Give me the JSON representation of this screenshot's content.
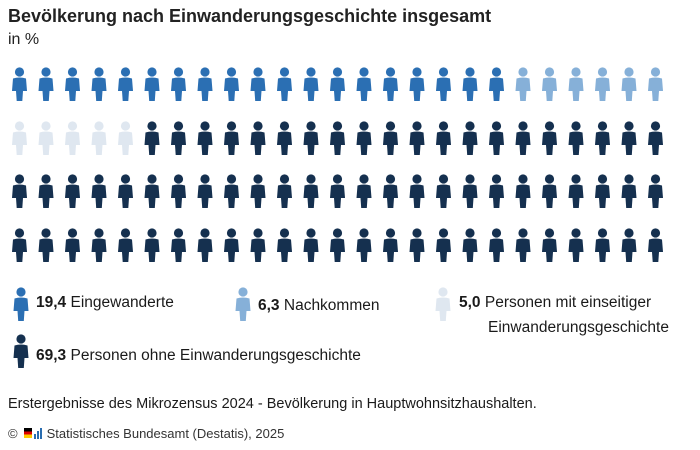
{
  "title": "Bevölkerung nach Einwanderungsgeschichte insgesamt",
  "subtitle": "in %",
  "chart_data": {
    "type": "pictogram",
    "total_icons": 100,
    "grid": {
      "rows": 4,
      "columns": 25
    },
    "series": [
      {
        "name": "Eingewanderte",
        "value": 19.4,
        "value_label": "19,4",
        "icons": 19,
        "color": "#2b6fb3"
      },
      {
        "name": "Nachkommen",
        "value": 6.3,
        "value_label": "6,3",
        "icons": 6,
        "color": "#86b0d8"
      },
      {
        "name": "Personen mit einseitiger Einwanderungsgeschichte",
        "value": 5.0,
        "value_label": "5,0",
        "icons": 5,
        "color": "#dfe7f0"
      },
      {
        "name": "Personen ohne Einwanderungsgeschichte",
        "value": 69.3,
        "value_label": "69,3",
        "icons": 70,
        "color": "#15304f"
      }
    ]
  },
  "legend": {
    "item1_value": "19,4",
    "item1_label": "Eingewanderte",
    "item2_value": "6,3",
    "item2_label": "Nachkommen",
    "item3_value": "5,0",
    "item3_label_line1": "Personen mit einseitiger",
    "item3_label_line2": "Einwanderungsgeschichte",
    "item4_value": "69,3",
    "item4_label": "Personen ohne Einwanderungsgeschichte"
  },
  "note": "Erstergebnisse des Mikrozensus 2024 - Bevölkerung in Hauptwohnsitzhaushalten.",
  "source": "Statistisches Bundesamt (Destatis), 2025",
  "copyright_symbol": "©"
}
